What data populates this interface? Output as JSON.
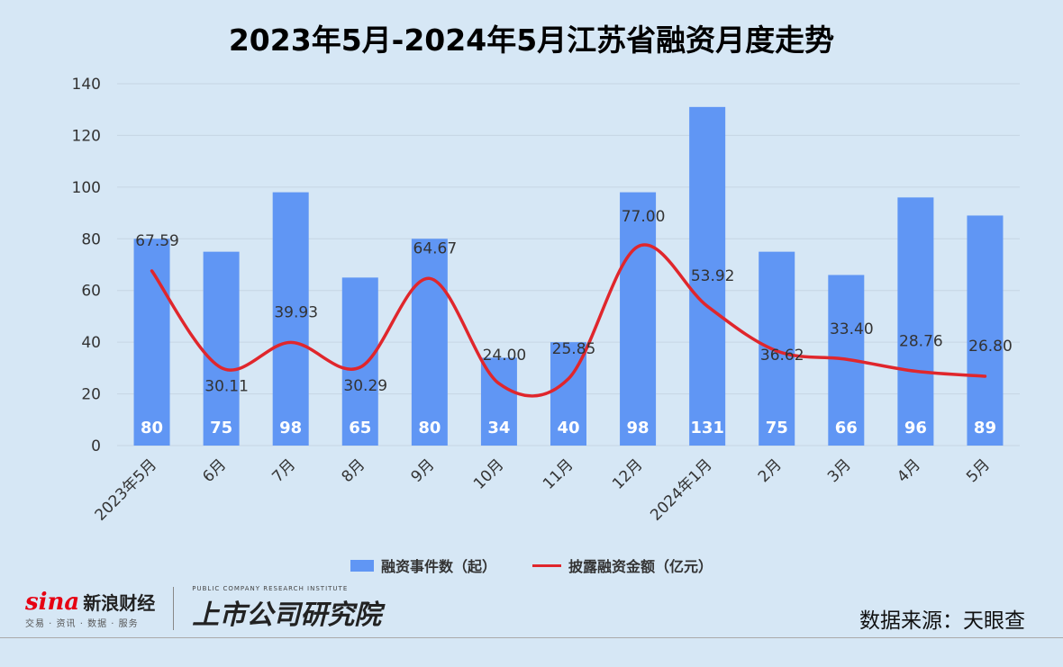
{
  "chart_data": {
    "type": "bar",
    "title": "2023年5月-2024年5月江苏省融资月度走势",
    "categories": [
      "2023年5月",
      "6月",
      "7月",
      "8月",
      "9月",
      "10月",
      "11月",
      "12月",
      "2024年1月",
      "2月",
      "3月",
      "4月",
      "5月"
    ],
    "series": [
      {
        "name": "融资事件数（起）",
        "type": "bar",
        "color": "#6096f4",
        "values": [
          80,
          75,
          98,
          65,
          80,
          34,
          40,
          98,
          131,
          75,
          66,
          96,
          89
        ],
        "labels": [
          "80",
          "75",
          "98",
          "65",
          "80",
          "34",
          "40",
          "98",
          "131",
          "75",
          "66",
          "96",
          "89"
        ]
      },
      {
        "name": "披露融资金额（亿元）",
        "type": "line",
        "color": "#e0262c",
        "values": [
          67.59,
          30.11,
          39.93,
          30.29,
          64.67,
          24.0,
          25.85,
          77.0,
          53.92,
          36.62,
          33.4,
          28.76,
          26.8
        ],
        "labels": [
          "67.59",
          "30.11",
          "39.93",
          "30.29",
          "64.67",
          "24.00",
          "25.85",
          "77.00",
          "53.92",
          "36.62",
          "33.40",
          "28.76",
          "26.80"
        ]
      }
    ],
    "ylim": [
      0,
      140
    ],
    "yticks": [
      "0",
      "20",
      "40",
      "60",
      "80",
      "100",
      "120",
      "140"
    ],
    "grid": true,
    "legend_position": "bottom"
  },
  "legend": {
    "bar_label": "融资事件数（起）",
    "line_label": "披露融资金额（亿元）"
  },
  "footer": {
    "brand_latin": "sina",
    "brand_cn": "新浪财经",
    "brand_sub": "交易 · 资讯 · 数据 · 服务",
    "institute_en": "PUBLIC COMPANY RESEARCH INSTITUTE",
    "institute_cn": "上市公司研究院",
    "source": "数据来源：天眼查"
  }
}
